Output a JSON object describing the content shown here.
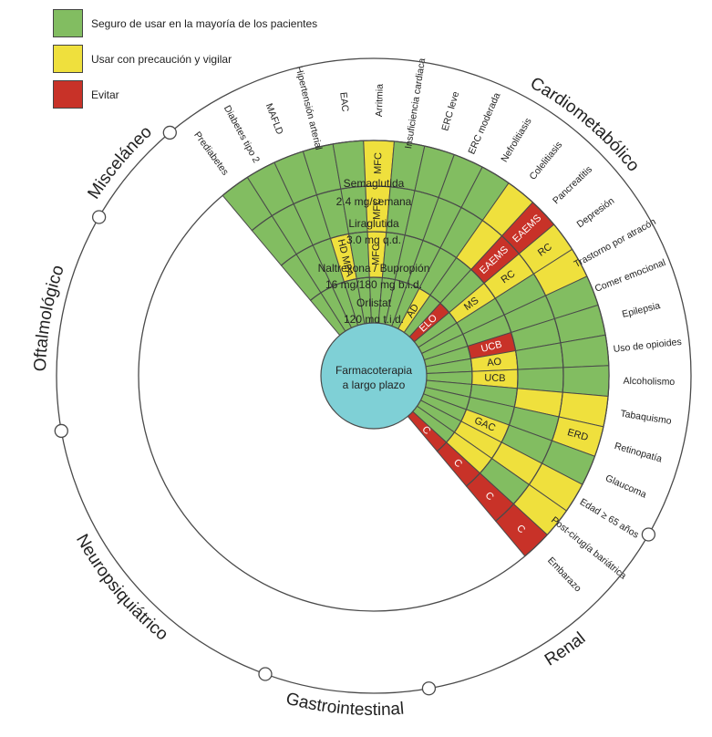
{
  "legend": [
    {
      "label": "Seguro de usar en la mayoría de los pacientes",
      "color": "#82bd61"
    },
    {
      "label": "Usar con precaución y vigilar",
      "color": "#efe03d"
    },
    {
      "label": "Evitar",
      "color": "#c83228"
    }
  ],
  "colors": {
    "G": "#82bd61",
    "Y": "#efe03d",
    "R": "#c83228",
    "center": "#7fd0d6",
    "line": "#4a4a4a"
  },
  "center": {
    "line1": "Farmacoterapia",
    "line2": "a largo plazo"
  },
  "drugs": [
    {
      "name": "Orlistat",
      "dose": "120 mg t.i.d."
    },
    {
      "name": "Naltrexona / Bupropión",
      "dose": "16 mg/180 mg b.i.d."
    },
    {
      "name": "Liraglutida",
      "dose": "3.0 mg q.d."
    },
    {
      "name": "Semaglutida",
      "dose": "2.4 mg/semana"
    }
  ],
  "categories": [
    {
      "name": "Cardiometabólico"
    },
    {
      "name": "Renal"
    },
    {
      "name": "Gastrointestinal"
    },
    {
      "name": "Neuropsiquiátrico"
    },
    {
      "name": "Oftalmológico"
    },
    {
      "name": "Misceláneo"
    }
  ],
  "conditions": [
    {
      "name": "Prediabetes",
      "cells": [
        "G",
        "G",
        "G",
        "G"
      ],
      "labels": [
        "",
        "",
        "",
        ""
      ]
    },
    {
      "name": "Diabetes tipo 2",
      "cells": [
        "G",
        "G",
        "G",
        "G"
      ],
      "labels": [
        "",
        "",
        "",
        ""
      ]
    },
    {
      "name": "MAFLD",
      "cells": [
        "G",
        "G",
        "G",
        "G"
      ],
      "labels": [
        "",
        "",
        "",
        ""
      ]
    },
    {
      "name": "Hipertensión arterial",
      "cells": [
        "G",
        "Y",
        "G",
        "G"
      ],
      "labels": [
        "",
        "HD MPA",
        "",
        ""
      ]
    },
    {
      "name": "EAC",
      "cells": [
        "G",
        "G",
        "G",
        "G"
      ],
      "labels": [
        "",
        "",
        "",
        ""
      ]
    },
    {
      "name": "Arritmia",
      "cells": [
        "G",
        "Y",
        "Y",
        "Y"
      ],
      "labels": [
        "",
        "MFC",
        "MFC",
        "MFC"
      ]
    },
    {
      "name": "Insuficiencia cardiaca",
      "cells": [
        "G",
        "G",
        "G",
        "G"
      ],
      "labels": [
        "",
        "",
        "",
        ""
      ]
    },
    {
      "name": "ERC leve",
      "cells": [
        "G",
        "G",
        "G",
        "G"
      ],
      "labels": [
        "",
        "",
        "",
        ""
      ]
    },
    {
      "name": "ERC moderada",
      "cells": [
        "G",
        "G",
        "G",
        "G"
      ],
      "labels": [
        "",
        "",
        "",
        ""
      ]
    },
    {
      "name": "Nefrolitiasis",
      "cells": [
        "Y",
        "G",
        "G",
        "G"
      ],
      "labels": [
        "AD",
        "",
        "",
        ""
      ]
    },
    {
      "name": "Colelitiasis",
      "cells": [
        "G",
        "G",
        "Y",
        "Y"
      ],
      "labels": [
        "",
        "",
        "",
        ""
      ]
    },
    {
      "name": "Pancreatitis",
      "cells": [
        "R",
        "G",
        "R",
        "R"
      ],
      "labels": [
        "ELO",
        "",
        "EAEMS",
        "EAEMS"
      ]
    },
    {
      "name": "Depresión",
      "cells": [
        "G",
        "Y",
        "Y",
        "Y"
      ],
      "labels": [
        "",
        "MS",
        "RC",
        "RC"
      ]
    },
    {
      "name": "Trastorno por atracón",
      "cells": [
        "G",
        "G",
        "G",
        "Y"
      ],
      "labels": [
        "",
        "",
        "",
        ""
      ]
    },
    {
      "name": "Comer emocional",
      "cells": [
        "G",
        "G",
        "G",
        "G"
      ],
      "labels": [
        "",
        "",
        "",
        ""
      ]
    },
    {
      "name": "Epilepsia",
      "cells": [
        "G",
        "R",
        "G",
        "G"
      ],
      "labels": [
        "",
        "UCB",
        "",
        ""
      ]
    },
    {
      "name": "Uso de opioides",
      "cells": [
        "G",
        "Y",
        "G",
        "G"
      ],
      "labels": [
        "",
        "AO",
        "",
        ""
      ]
    },
    {
      "name": "Alcoholismo",
      "cells": [
        "G",
        "Y",
        "G",
        "G"
      ],
      "labels": [
        "",
        "UCB",
        "",
        ""
      ]
    },
    {
      "name": "Tabaquismo",
      "cells": [
        "G",
        "G",
        "Y",
        "Y"
      ],
      "labels": [
        "",
        "",
        "",
        ""
      ]
    },
    {
      "name": "Retinopatía",
      "cells": [
        "G",
        "G",
        "G",
        "Y"
      ],
      "labels": [
        "",
        "",
        "",
        "ERD"
      ]
    },
    {
      "name": "Glaucoma",
      "cells": [
        "G",
        "Y",
        "G",
        "G"
      ],
      "labels": [
        "",
        "GAC",
        "",
        ""
      ]
    },
    {
      "name": "Edad ≥ 65 años",
      "cells": [
        "G",
        "Y",
        "Y",
        "Y"
      ],
      "labels": [
        "",
        "",
        "",
        ""
      ]
    },
    {
      "name": "Post-cirugía bariátrica",
      "cells": [
        "G",
        "Y",
        "G",
        "Y"
      ],
      "labels": [
        "",
        "",
        "",
        ""
      ]
    },
    {
      "name": "Embarazo",
      "cells": [
        "R",
        "R",
        "R",
        "R"
      ],
      "labels": [
        "C",
        "C",
        "C",
        "C"
      ]
    }
  ]
}
